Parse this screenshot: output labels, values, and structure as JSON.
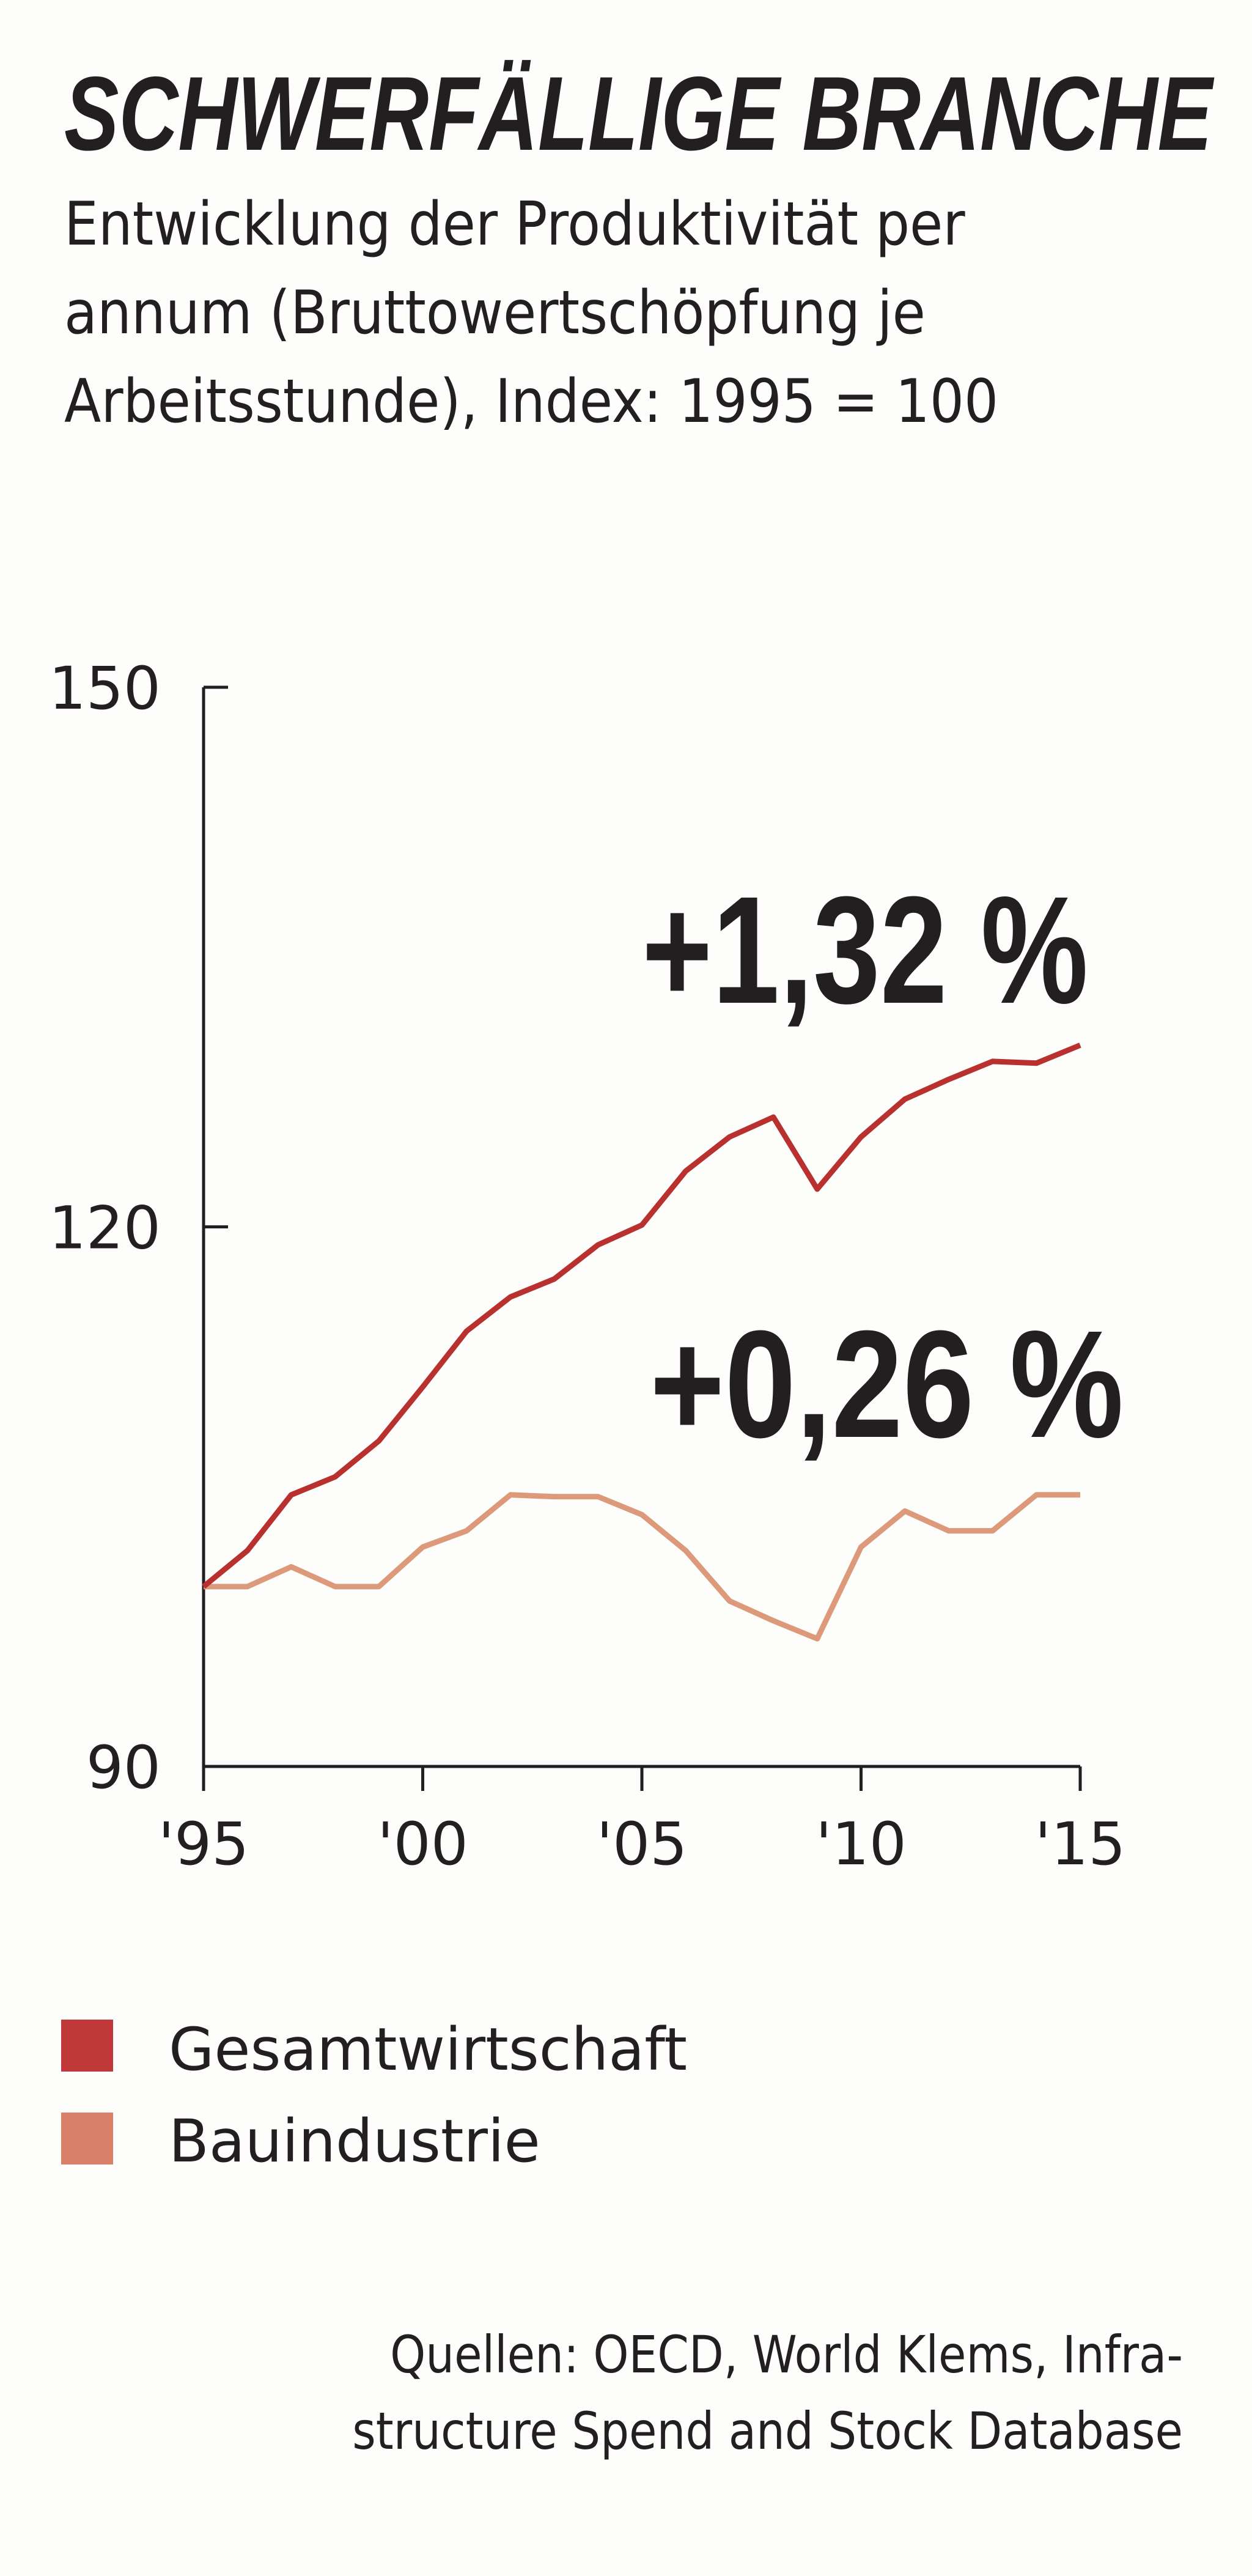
{
  "title": "SCHWERFÄLLIGE BRANCHE",
  "subtitle_lines": [
    "Entwicklung der Produktivität per",
    "annum (Bruttowertschöpfung je",
    "Arbeitsstunde), Index: 1995 = 100"
  ],
  "source_lines": [
    "Quellen: OECD, World Klems, Infra-",
    "structure Spend and Stock Database"
  ],
  "chart_data": {
    "type": "line",
    "title": "SCHWERFÄLLIGE BRANCHE",
    "xlabel": "",
    "ylabel": "",
    "x": [
      1995,
      1996,
      1997,
      1998,
      1999,
      2000,
      2001,
      2002,
      2003,
      2004,
      2005,
      2006,
      2007,
      2008,
      2009,
      2010,
      2011,
      2012,
      2013,
      2014,
      2015
    ],
    "xlim": [
      1995,
      2015
    ],
    "ylim": [
      90,
      150
    ],
    "grid": false,
    "y_ticks": [
      {
        "value": 150,
        "label": "150"
      },
      {
        "value": 120,
        "label": "120"
      },
      {
        "value": 90,
        "label": "90"
      }
    ],
    "x_ticks": [
      {
        "value": 1995,
        "label": "'95"
      },
      {
        "value": 2000,
        "label": "'00"
      },
      {
        "value": 2005,
        "label": "'05"
      },
      {
        "value": 2010,
        "label": "'10"
      },
      {
        "value": 2015,
        "label": "'15"
      }
    ],
    "series": [
      {
        "name": "Gesamtwirtschaft",
        "color": "#b8312f",
        "values": [
          100,
          102,
          105.1,
          106.1,
          108.1,
          111.1,
          114.2,
          116.1,
          117.1,
          119,
          120.1,
          123.1,
          125,
          126.1,
          122.1,
          125,
          127.1,
          128.2,
          129.2,
          129.1,
          130.1
        ],
        "annotation": "+1,32 %"
      },
      {
        "name": "Bauindustrie",
        "color": "#dc9a7a",
        "values": [
          100,
          100,
          101.1,
          100,
          100,
          102.2,
          103.1,
          105.1,
          105,
          105,
          104,
          102,
          99.2,
          98.1,
          97.1,
          102.2,
          104.2,
          103.1,
          103.1,
          105.1,
          105.1
        ],
        "annotation": "+0,26 %"
      }
    ],
    "legend": {
      "placement": "bottom-left",
      "entries": [
        {
          "label": "Gesamtwirtschaft",
          "color": "#c0393a"
        },
        {
          "label": "Bauindustrie",
          "color": "#d98068"
        }
      ]
    }
  }
}
